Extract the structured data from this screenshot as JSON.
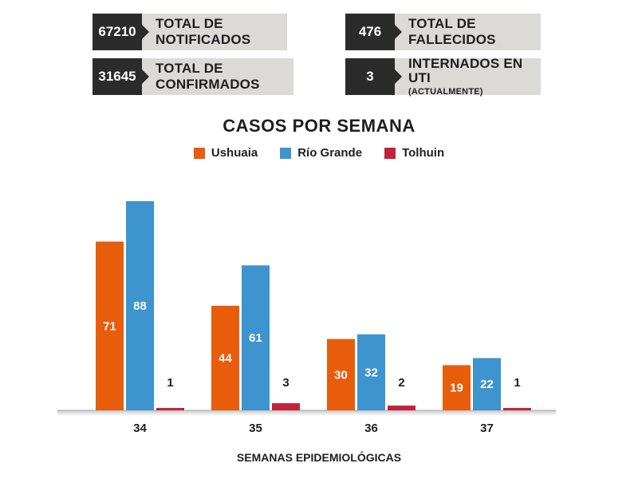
{
  "stats": [
    {
      "value": "67210",
      "label": "TOTAL DE NOTIFICADOS",
      "sublabel": ""
    },
    {
      "value": "476",
      "label": "TOTAL DE FALLECIDOS",
      "sublabel": ""
    },
    {
      "value": "31645",
      "label": "TOTAL DE CONFIRMADOS",
      "sublabel": ""
    },
    {
      "value": "3",
      "label": "INTERNADOS EN UTI",
      "sublabel": "(ACTUALMENTE)"
    }
  ],
  "chart_data": {
    "type": "bar",
    "title": "CASOS POR SEMANA",
    "xlabel": "SEMANAS EPIDEMIOLÓGICAS",
    "ylabel": "",
    "categories": [
      "34",
      "35",
      "36",
      "37"
    ],
    "series": [
      {
        "name": "Ushuaia",
        "color": "#e85d0c",
        "values": [
          71,
          44,
          30,
          19
        ]
      },
      {
        "name": "Río Grande",
        "color": "#3d94cf",
        "values": [
          88,
          61,
          32,
          22
        ]
      },
      {
        "name": "Tolhuin",
        "color": "#c4213d",
        "values": [
          1,
          3,
          2,
          1
        ]
      }
    ],
    "ylim": [
      0,
      90
    ],
    "grid": false,
    "legend_position": "top-center"
  }
}
